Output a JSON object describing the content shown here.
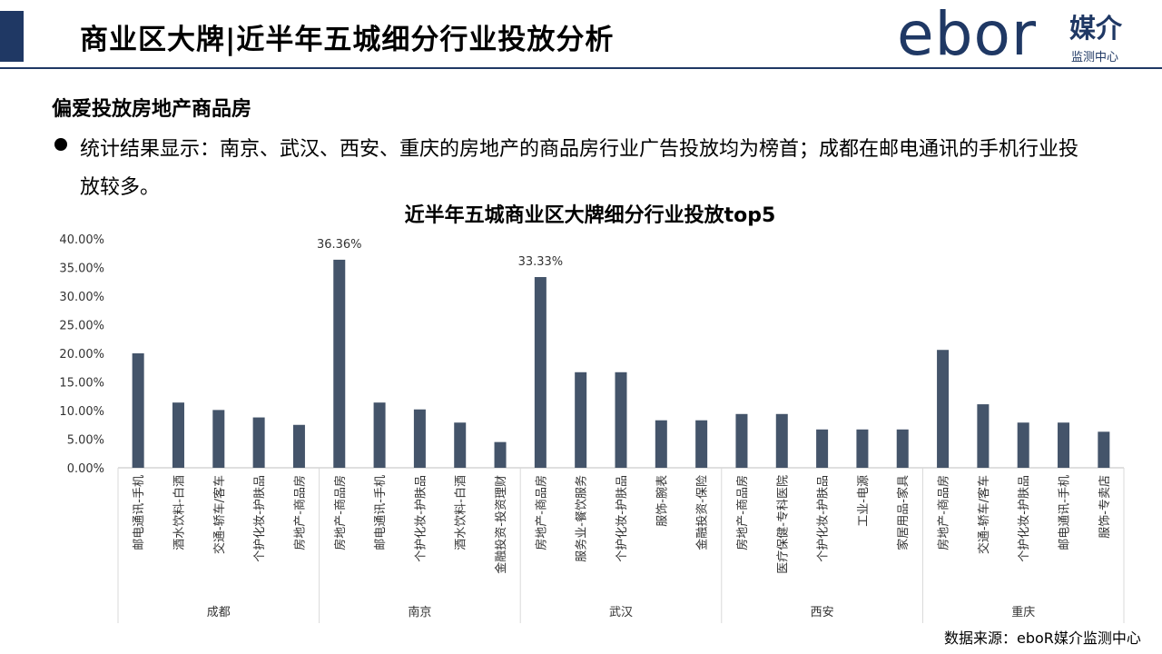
{
  "header": {
    "title": "商业区大牌|近半年五城细分行业投放分析",
    "logo_text": "ebor",
    "logo_brand": "媒介",
    "logo_sub": "监测中心"
  },
  "section": {
    "title": "偏爱投放房地产商品房",
    "bullet": "统计结果显示：南京、武汉、西安、重庆的房地产的商品房行业广告投放均为榜首；成都在邮电通讯的手机行业投放较多。"
  },
  "source": "数据来源：eboR媒介监测中心",
  "colors": {
    "accent": "#1F3864",
    "bar": "#44546A"
  },
  "chart_data": {
    "type": "bar",
    "title": "近半年五城商业区大牌细分行业投放top5",
    "ylim": [
      0,
      40
    ],
    "yticks": [
      "0.00%",
      "5.00%",
      "10.00%",
      "15.00%",
      "20.00%",
      "25.00%",
      "30.00%",
      "35.00%",
      "40.00%"
    ],
    "grid": false,
    "legend": "none",
    "groups": [
      {
        "name": "成都",
        "categories": [
          "邮电通讯-手机",
          "酒水饮料-白酒",
          "交通-轿车/客车",
          "个护化妆-护肤品",
          "房地产-商品房"
        ],
        "values": [
          20.0,
          11.4,
          10.1,
          8.8,
          7.5
        ]
      },
      {
        "name": "南京",
        "categories": [
          "房地产-商品房",
          "邮电通讯-手机",
          "个护化妆-护肤品",
          "酒水饮料-白酒",
          "金融投资-投资理财"
        ],
        "values": [
          36.36,
          11.4,
          10.2,
          7.9,
          4.5
        ]
      },
      {
        "name": "武汉",
        "categories": [
          "房地产-商品房",
          "服务业-餐饮服务",
          "个护化妆-护肤品",
          "服饰-腕表",
          "金融投资-保险"
        ],
        "values": [
          33.33,
          16.7,
          16.7,
          8.3,
          8.3
        ]
      },
      {
        "name": "西安",
        "categories": [
          "房地产-商品房",
          "医疗保健-专科医院",
          "个护化妆-护肤品",
          "工业-电源",
          "家居用品-家具"
        ],
        "values": [
          9.4,
          9.4,
          6.7,
          6.7,
          6.7
        ]
      },
      {
        "name": "重庆",
        "categories": [
          "房地产-商品房",
          "交通-轿车/客车",
          "个护化妆-护肤品",
          "邮电通讯-手机",
          "服饰-专卖店"
        ],
        "values": [
          20.6,
          11.1,
          7.9,
          7.9,
          6.3
        ]
      }
    ],
    "data_labels": [
      {
        "group": 1,
        "index": 0,
        "text": "36.36%"
      },
      {
        "group": 2,
        "index": 0,
        "text": "33.33%"
      }
    ]
  }
}
